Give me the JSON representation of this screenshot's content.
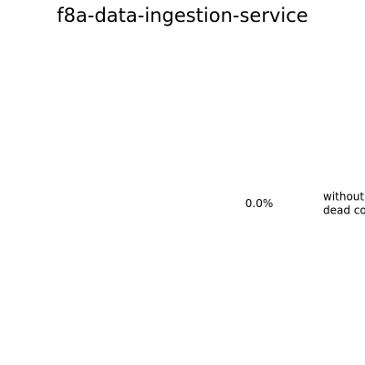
{
  "chart_data": {
    "type": "pie",
    "title": "f8a-data-ingestion-service",
    "slices": [
      {
        "label_lines": [
          "without",
          "dead code"
        ],
        "value": 0.0,
        "pct_label": "0.0%",
        "color": "#1f77b4"
      }
    ]
  }
}
